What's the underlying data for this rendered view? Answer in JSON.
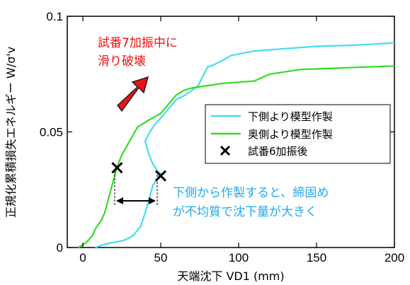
{
  "chart_data": {
    "type": "line",
    "title": "",
    "xlabel": "天端沈下 VD1 (mm)",
    "ylabel": "正規化累積損失エネルギー W/σ'v",
    "xlim": [
      -10,
      200
    ],
    "ylim": [
      0,
      0.1
    ],
    "xticks": [
      "0",
      "50",
      "100",
      "150",
      "200"
    ],
    "yticks": [
      "0",
      "0.05",
      "0.1"
    ],
    "grid": false,
    "legend_placement": "center-right",
    "series": [
      {
        "name": "下側より模型作製",
        "color": "#44ddee",
        "points": [
          [
            8,
            0
          ],
          [
            12,
            0.001
          ],
          [
            18,
            0.002
          ],
          [
            26,
            0.003
          ],
          [
            32,
            0.005
          ],
          [
            37,
            0.009
          ],
          [
            40,
            0.015
          ],
          [
            43,
            0.022
          ],
          [
            45,
            0.027
          ],
          [
            48,
            0.03
          ],
          [
            50,
            0.032
          ],
          [
            48,
            0.033
          ],
          [
            45,
            0.036
          ],
          [
            42,
            0.041
          ],
          [
            40,
            0.046
          ],
          [
            43,
            0.05
          ],
          [
            46,
            0.053
          ],
          [
            50,
            0.056
          ],
          [
            55,
            0.06
          ],
          [
            60,
            0.064
          ],
          [
            66,
            0.066
          ],
          [
            70,
            0.068
          ],
          [
            74,
            0.07
          ],
          [
            77,
            0.074
          ],
          [
            80,
            0.078
          ],
          [
            84,
            0.079
          ],
          [
            90,
            0.081
          ],
          [
            95,
            0.083
          ],
          [
            110,
            0.085
          ],
          [
            130,
            0.086
          ],
          [
            150,
            0.087
          ],
          [
            175,
            0.0875
          ],
          [
            200,
            0.0885
          ]
        ]
      },
      {
        "name": "奥側より模型作製",
        "color": "#33dd22",
        "points": [
          [
            -3,
            0
          ],
          [
            2,
            0.002
          ],
          [
            6,
            0.005
          ],
          [
            8,
            0.008
          ],
          [
            10,
            0.01
          ],
          [
            12,
            0.012
          ],
          [
            14,
            0.015
          ],
          [
            16,
            0.02
          ],
          [
            18,
            0.025
          ],
          [
            20,
            0.03
          ],
          [
            22,
            0.035
          ],
          [
            25,
            0.04
          ],
          [
            30,
            0.046
          ],
          [
            35,
            0.052
          ],
          [
            42,
            0.055
          ],
          [
            50,
            0.058
          ],
          [
            55,
            0.062
          ],
          [
            60,
            0.066
          ],
          [
            65,
            0.068
          ],
          [
            70,
            0.069
          ],
          [
            80,
            0.07
          ],
          [
            90,
            0.071
          ],
          [
            100,
            0.0715
          ],
          [
            110,
            0.072
          ],
          [
            120,
            0.075
          ],
          [
            140,
            0.077
          ],
          [
            160,
            0.0775
          ],
          [
            180,
            0.078
          ],
          [
            200,
            0.0785
          ]
        ]
      }
    ],
    "markers": {
      "name": "試番6加振後",
      "points": [
        [
          22,
          0.0345
        ],
        [
          50,
          0.031
        ]
      ]
    },
    "annotations": {
      "top_text": [
        "試番7加振中に",
        "滑り破壊"
      ],
      "top_color": "#ee1111",
      "bottom_text": [
        "下側から作製すると、締固め",
        "が不均質で沈下量が大きく"
      ],
      "bottom_color": "#22aaee",
      "arrow_color": "#ee1111"
    }
  }
}
